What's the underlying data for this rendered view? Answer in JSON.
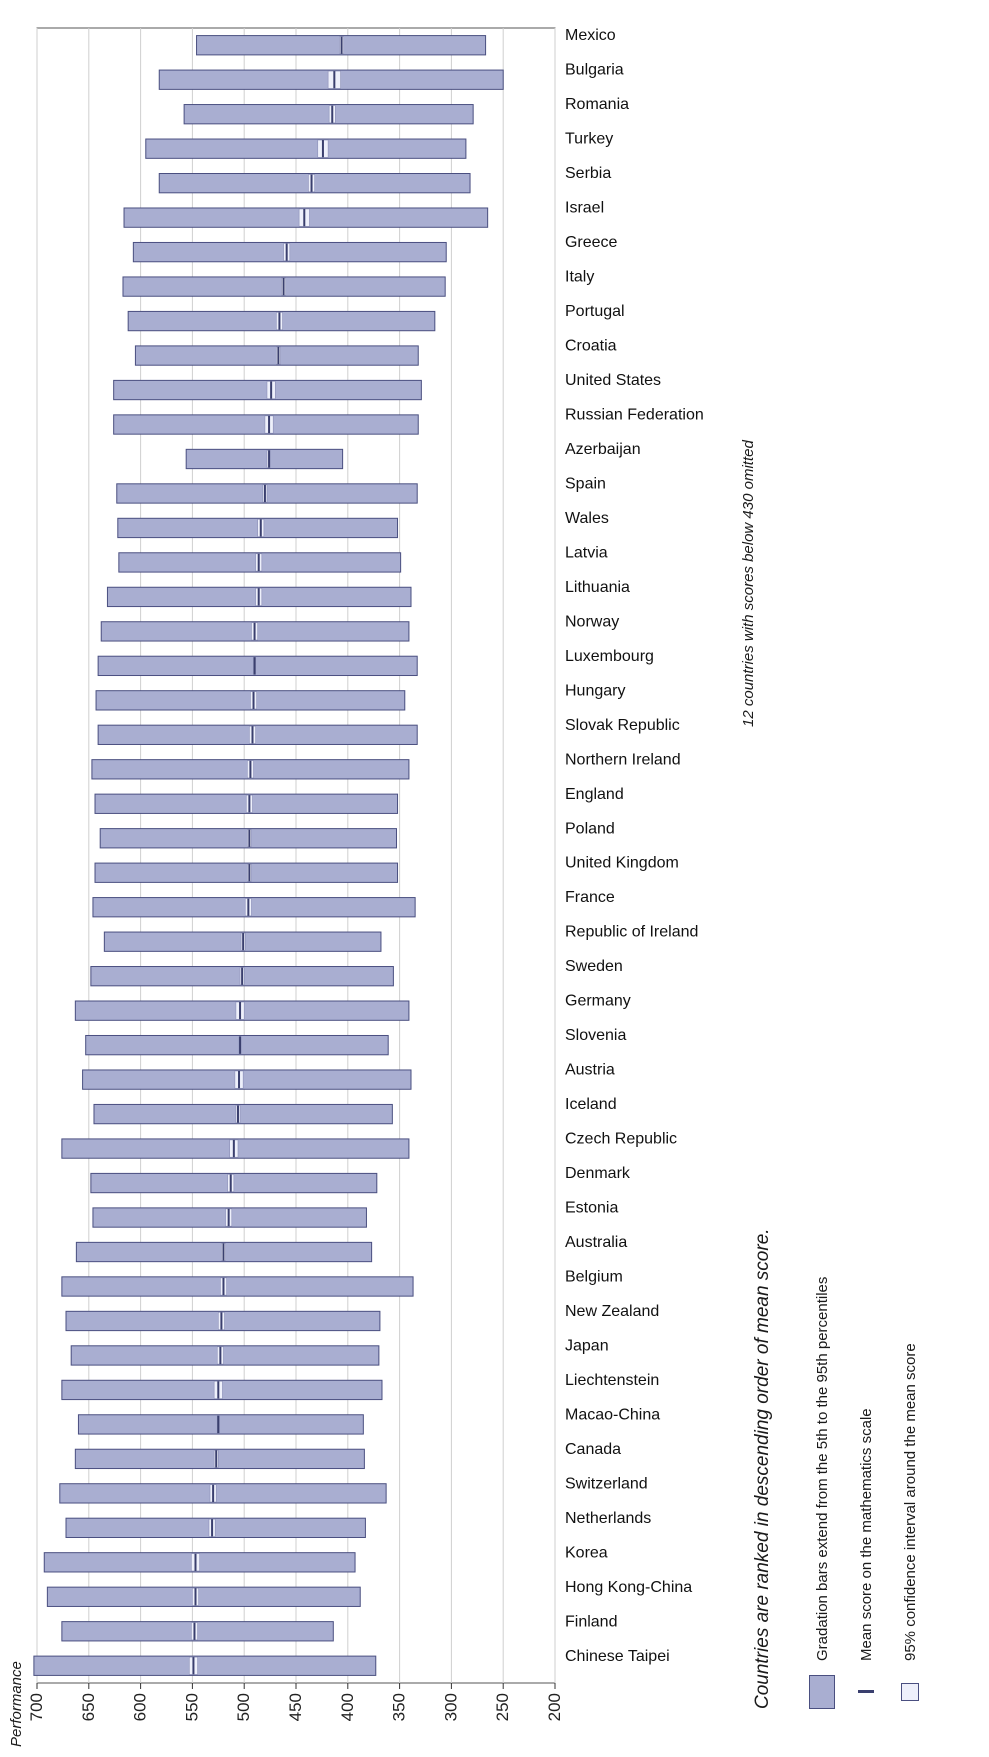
{
  "chart_data": {
    "type": "bar",
    "subtype": "horizontal range (gradation) bars with mean markers",
    "value_axis_label": "Performance",
    "value_ticks": [
      700,
      650,
      600,
      550,
      500,
      450,
      400,
      350,
      300,
      250,
      200
    ],
    "xlim": [
      200,
      700
    ],
    "grid": true,
    "countries": [
      {
        "name": "Chinese Taipei",
        "p5": 373,
        "p95": 703,
        "mean": 549,
        "ci": [
          545,
          553
        ]
      },
      {
        "name": "Finland",
        "p5": 414,
        "p95": 676,
        "mean": 548,
        "ci": [
          545,
          551
        ]
      },
      {
        "name": "Hong Kong-China",
        "p5": 388,
        "p95": 690,
        "mean": 547,
        "ci": [
          544,
          550
        ]
      },
      {
        "name": "Korea",
        "p5": 393,
        "p95": 693,
        "mean": 547,
        "ci": [
          543,
          551
        ]
      },
      {
        "name": "Netherlands",
        "p5": 383,
        "p95": 672,
        "mean": 531,
        "ci": [
          528,
          534
        ]
      },
      {
        "name": "Switzerland",
        "p5": 363,
        "p95": 678,
        "mean": 530,
        "ci": [
          527,
          533
        ]
      },
      {
        "name": "Canada",
        "p5": 384,
        "p95": 663,
        "mean": 527,
        "ci": [
          525,
          529
        ]
      },
      {
        "name": "Macao-China",
        "p5": 385,
        "p95": 660,
        "mean": 525,
        "ci": [
          524,
          526
        ]
      },
      {
        "name": "Liechtenstein",
        "p5": 367,
        "p95": 676,
        "mean": 525,
        "ci": [
          521,
          529
        ]
      },
      {
        "name": "Japan",
        "p5": 370,
        "p95": 667,
        "mean": 523,
        "ci": [
          520,
          526
        ]
      },
      {
        "name": "New Zealand",
        "p5": 369,
        "p95": 672,
        "mean": 522,
        "ci": [
          519,
          525
        ]
      },
      {
        "name": "Belgium",
        "p5": 337,
        "p95": 676,
        "mean": 520,
        "ci": [
          517,
          523
        ]
      },
      {
        "name": "Australia",
        "p5": 377,
        "p95": 662,
        "mean": 520,
        "ci": [
          518,
          522
        ]
      },
      {
        "name": "Estonia",
        "p5": 382,
        "p95": 646,
        "mean": 515,
        "ci": [
          512,
          518
        ]
      },
      {
        "name": "Denmark",
        "p5": 372,
        "p95": 648,
        "mean": 513,
        "ci": [
          510,
          516
        ]
      },
      {
        "name": "Czech Republic",
        "p5": 341,
        "p95": 676,
        "mean": 510,
        "ci": [
          506,
          514
        ]
      },
      {
        "name": "Iceland",
        "p5": 357,
        "p95": 645,
        "mean": 506,
        "ci": [
          504,
          508
        ]
      },
      {
        "name": "Austria",
        "p5": 339,
        "p95": 656,
        "mean": 505,
        "ci": [
          501,
          509
        ]
      },
      {
        "name": "Slovenia",
        "p5": 361,
        "p95": 653,
        "mean": 504,
        "ci": [
          503,
          505
        ]
      },
      {
        "name": "Germany",
        "p5": 341,
        "p95": 663,
        "mean": 504,
        "ci": [
          500,
          508
        ]
      },
      {
        "name": "Sweden",
        "p5": 356,
        "p95": 648,
        "mean": 502,
        "ci": [
          500,
          504
        ]
      },
      {
        "name": "Republic of Ireland",
        "p5": 368,
        "p95": 635,
        "mean": 501,
        "ci": [
          499,
          503
        ]
      },
      {
        "name": "France",
        "p5": 335,
        "p95": 646,
        "mean": 496,
        "ci": [
          493,
          499
        ]
      },
      {
        "name": "United Kingdom",
        "p5": 352,
        "p95": 644,
        "mean": 495,
        "ci": [
          493,
          497
        ]
      },
      {
        "name": "Poland",
        "p5": 353,
        "p95": 639,
        "mean": 495,
        "ci": [
          493,
          497
        ]
      },
      {
        "name": "England",
        "p5": 352,
        "p95": 644,
        "mean": 495,
        "ci": [
          492,
          498
        ]
      },
      {
        "name": "Northern Ireland",
        "p5": 341,
        "p95": 647,
        "mean": 494,
        "ci": [
          491,
          497
        ]
      },
      {
        "name": "Slovak Republic",
        "p5": 333,
        "p95": 641,
        "mean": 492,
        "ci": [
          489,
          495
        ]
      },
      {
        "name": "Hungary",
        "p5": 345,
        "p95": 643,
        "mean": 491,
        "ci": [
          488,
          494
        ]
      },
      {
        "name": "Luxembourg",
        "p5": 333,
        "p95": 641,
        "mean": 490,
        "ci": [
          489,
          491
        ]
      },
      {
        "name": "Norway",
        "p5": 341,
        "p95": 638,
        "mean": 490,
        "ci": [
          487,
          493
        ]
      },
      {
        "name": "Lithuania",
        "p5": 339,
        "p95": 632,
        "mean": 486,
        "ci": [
          483,
          489
        ]
      },
      {
        "name": "Latvia",
        "p5": 349,
        "p95": 621,
        "mean": 486,
        "ci": [
          483,
          489
        ]
      },
      {
        "name": "Wales",
        "p5": 352,
        "p95": 622,
        "mean": 484,
        "ci": [
          481,
          487
        ]
      },
      {
        "name": "Spain",
        "p5": 333,
        "p95": 623,
        "mean": 480,
        "ci": [
          478,
          482
        ]
      },
      {
        "name": "Azerbaijan",
        "p5": 405,
        "p95": 556,
        "mean": 476,
        "ci": [
          475,
          478
        ]
      },
      {
        "name": "Russian Federation",
        "p5": 332,
        "p95": 626,
        "mean": 476,
        "ci": [
          472,
          480
        ]
      },
      {
        "name": "United States",
        "p5": 329,
        "p95": 626,
        "mean": 474,
        "ci": [
          470,
          478
        ]
      },
      {
        "name": "Croatia",
        "p5": 332,
        "p95": 605,
        "mean": 467,
        "ci": [
          465,
          469
        ]
      },
      {
        "name": "Portugal",
        "p5": 316,
        "p95": 612,
        "mean": 466,
        "ci": [
          463,
          469
        ]
      },
      {
        "name": "Italy",
        "p5": 306,
        "p95": 617,
        "mean": 462,
        "ci": [
          460,
          464
        ]
      },
      {
        "name": "Greece",
        "p5": 305,
        "p95": 607,
        "mean": 459,
        "ci": [
          456,
          462
        ]
      },
      {
        "name": "Israel",
        "p5": 265,
        "p95": 616,
        "mean": 442,
        "ci": [
          437,
          447
        ]
      },
      {
        "name": "Serbia",
        "p5": 282,
        "p95": 582,
        "mean": 435,
        "ci": [
          432,
          438
        ]
      },
      {
        "name": "Turkey",
        "p5": 286,
        "p95": 595,
        "mean": 424,
        "ci": [
          419,
          429
        ]
      },
      {
        "name": "Romania",
        "p5": 279,
        "p95": 558,
        "mean": 415,
        "ci": [
          412,
          418
        ]
      },
      {
        "name": "Bulgaria",
        "p5": 250,
        "p95": 582,
        "mean": 413,
        "ci": [
          407,
          419
        ]
      },
      {
        "name": "Mexico",
        "p5": 267,
        "p95": 546,
        "mean": 406,
        "ci": [
          404,
          408
        ]
      }
    ]
  },
  "notes": {
    "omitted": "12 countries with scores below 430 omitted",
    "ranked": "Countries are ranked in descending order of mean score."
  },
  "legend": {
    "bars": "Gradation bars extend from the 5th to the 95th percentiles",
    "mean": "Mean score on the mathematics scale",
    "ci": "95% confidence interval around the mean score"
  },
  "colors": {
    "bar_fill": "#a9aed1",
    "bar_stroke": "#4a4f80",
    "ci_fill": "#eef0fb",
    "mean_mark": "#3a3f6e",
    "grid": "#cfcfcf"
  }
}
